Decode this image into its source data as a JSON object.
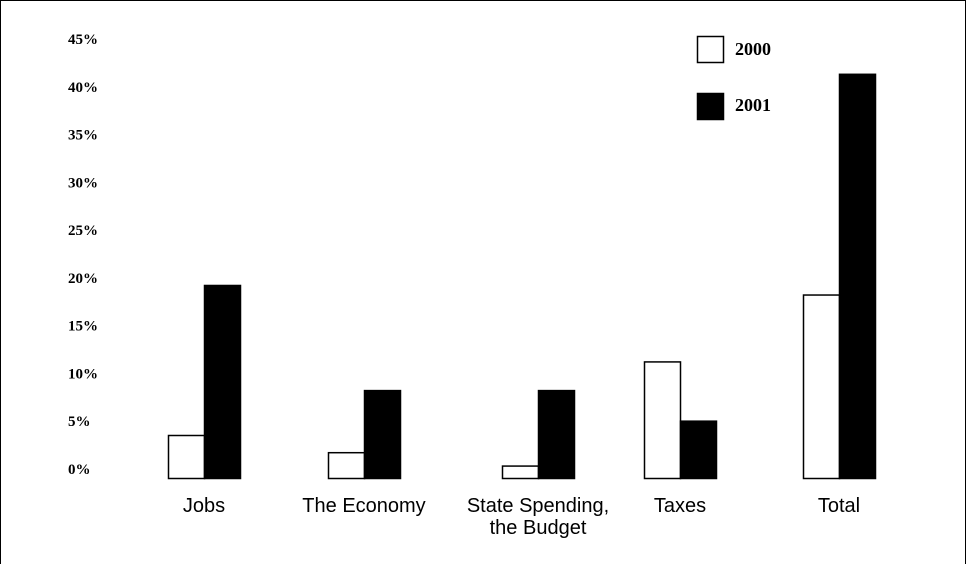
{
  "chart_data": {
    "type": "bar",
    "categories": [
      [
        "Jobs"
      ],
      [
        "The Economy"
      ],
      [
        "State Spending,",
        "the Budget"
      ],
      [
        "Taxes"
      ],
      [
        "Total"
      ]
    ],
    "series": [
      {
        "name": "2000",
        "values": [
          4.5,
          2.7,
          1.3,
          12.2,
          19.2
        ],
        "color": "#ffffff"
      },
      {
        "name": "2001",
        "values": [
          20.2,
          9.2,
          9.2,
          6.0,
          42.3
        ],
        "color": "#000000"
      }
    ],
    "y_tick_labels": [
      "0%",
      "5%",
      "10%",
      "15%",
      "20%",
      "25%",
      "30%",
      "35%",
      "40%",
      "45%"
    ],
    "ylim": [
      0,
      45
    ],
    "grid": false,
    "legend_position": "top-right"
  }
}
